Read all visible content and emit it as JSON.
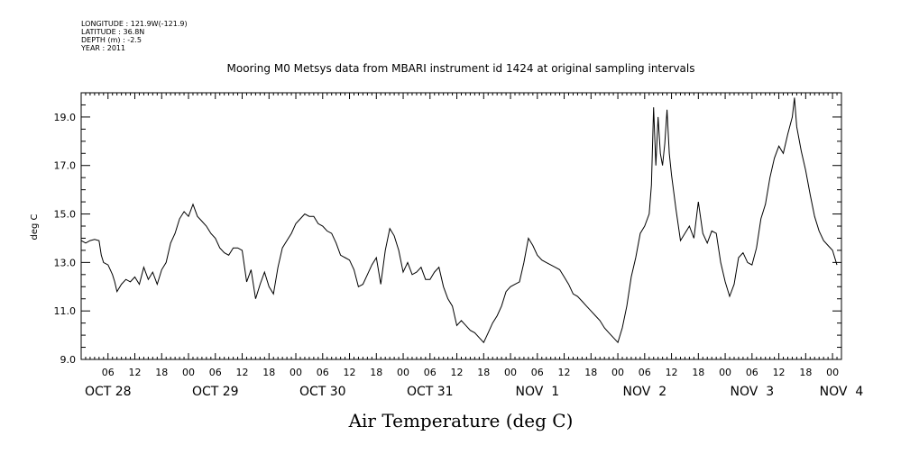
{
  "meta": {
    "longitude": "LONGITUDE : 121.9W(-121.9)",
    "latitude": "LATITUDE : 36.8N",
    "depth": "DEPTH (m) : -2.5",
    "year": "YEAR : 2011"
  },
  "chart_data": {
    "type": "line",
    "title": "Mooring M0 Metsys data from MBARI instrument id 1424 at original sampling intervals",
    "xlabel": "Air Temperature (deg C)",
    "ylabel": "deg C",
    "ylim": [
      9.0,
      20.0
    ],
    "xlim": [
      0,
      170
    ],
    "x_unit": "hours since OCT 28 00:00 (2011)",
    "y_ticks": [
      "9.0",
      "11.0",
      "13.0",
      "15.0",
      "17.0",
      "19.0"
    ],
    "hour_tick_labels": [
      {
        "t": 6,
        "label": "06"
      },
      {
        "t": 12,
        "label": "12"
      },
      {
        "t": 18,
        "label": "18"
      },
      {
        "t": 24,
        "label": "00"
      },
      {
        "t": 30,
        "label": "06"
      },
      {
        "t": 36,
        "label": "12"
      },
      {
        "t": 42,
        "label": "18"
      },
      {
        "t": 48,
        "label": "00"
      },
      {
        "t": 54,
        "label": "06"
      },
      {
        "t": 60,
        "label": "12"
      },
      {
        "t": 66,
        "label": "18"
      },
      {
        "t": 72,
        "label": "00"
      },
      {
        "t": 78,
        "label": "06"
      },
      {
        "t": 84,
        "label": "12"
      },
      {
        "t": 90,
        "label": "18"
      },
      {
        "t": 96,
        "label": "00"
      },
      {
        "t": 102,
        "label": "06"
      },
      {
        "t": 108,
        "label": "12"
      },
      {
        "t": 114,
        "label": "18"
      },
      {
        "t": 120,
        "label": "00"
      },
      {
        "t": 126,
        "label": "06"
      },
      {
        "t": 132,
        "label": "12"
      },
      {
        "t": 138,
        "label": "18"
      },
      {
        "t": 144,
        "label": "00"
      },
      {
        "t": 150,
        "label": "06"
      },
      {
        "t": 156,
        "label": "12"
      },
      {
        "t": 162,
        "label": "18"
      },
      {
        "t": 168,
        "label": "00"
      }
    ],
    "date_labels": [
      {
        "t": 6,
        "label": "OCT 28"
      },
      {
        "t": 30,
        "label": "OCT 29"
      },
      {
        "t": 54,
        "label": "OCT 30"
      },
      {
        "t": 78,
        "label": "OCT 31"
      },
      {
        "t": 102,
        "label": "NOV  1"
      },
      {
        "t": 126,
        "label": "NOV  2"
      },
      {
        "t": 150,
        "label": "NOV  3"
      },
      {
        "t": 170,
        "label": "NOV  4"
      }
    ],
    "series": [
      {
        "color": "#000000",
        "points": [
          [
            0,
            13.9
          ],
          [
            1,
            13.8
          ],
          [
            2,
            13.9
          ],
          [
            3,
            13.95
          ],
          [
            4,
            13.9
          ],
          [
            4.5,
            13.3
          ],
          [
            5,
            13.0
          ],
          [
            6,
            12.9
          ],
          [
            7,
            12.5
          ],
          [
            7.5,
            12.2
          ],
          [
            8,
            11.8
          ],
          [
            9,
            12.1
          ],
          [
            10,
            12.3
          ],
          [
            11,
            12.2
          ],
          [
            12,
            12.4
          ],
          [
            13,
            12.1
          ],
          [
            14,
            12.8
          ],
          [
            15,
            12.3
          ],
          [
            16,
            12.6
          ],
          [
            17,
            12.1
          ],
          [
            18,
            12.7
          ],
          [
            19,
            13.0
          ],
          [
            20,
            13.8
          ],
          [
            21,
            14.2
          ],
          [
            22,
            14.8
          ],
          [
            23,
            15.1
          ],
          [
            24,
            14.9
          ],
          [
            25,
            15.4
          ],
          [
            26,
            14.9
          ],
          [
            27,
            14.7
          ],
          [
            28,
            14.5
          ],
          [
            29,
            14.2
          ],
          [
            30,
            14.0
          ],
          [
            31,
            13.6
          ],
          [
            32,
            13.4
          ],
          [
            33,
            13.3
          ],
          [
            34,
            13.6
          ],
          [
            35,
            13.6
          ],
          [
            36,
            13.5
          ],
          [
            37,
            12.2
          ],
          [
            38,
            12.7
          ],
          [
            39,
            11.5
          ],
          [
            40,
            12.1
          ],
          [
            41,
            12.6
          ],
          [
            42,
            12.0
          ],
          [
            43,
            11.7
          ],
          [
            44,
            12.8
          ],
          [
            45,
            13.6
          ],
          [
            46,
            13.9
          ],
          [
            47,
            14.2
          ],
          [
            48,
            14.6
          ],
          [
            49,
            14.8
          ],
          [
            50,
            15.0
          ],
          [
            51,
            14.9
          ],
          [
            52,
            14.9
          ],
          [
            53,
            14.6
          ],
          [
            54,
            14.5
          ],
          [
            55,
            14.3
          ],
          [
            56,
            14.2
          ],
          [
            57,
            13.8
          ],
          [
            58,
            13.3
          ],
          [
            59,
            13.2
          ],
          [
            60,
            13.1
          ],
          [
            61,
            12.7
          ],
          [
            62,
            12.0
          ],
          [
            63,
            12.1
          ],
          [
            64,
            12.5
          ],
          [
            65,
            12.9
          ],
          [
            66,
            13.2
          ],
          [
            67,
            12.1
          ],
          [
            68,
            13.5
          ],
          [
            69,
            14.4
          ],
          [
            70,
            14.1
          ],
          [
            71,
            13.5
          ],
          [
            72,
            12.6
          ],
          [
            73,
            13.0
          ],
          [
            74,
            12.5
          ],
          [
            75,
            12.6
          ],
          [
            76,
            12.8
          ],
          [
            77,
            12.3
          ],
          [
            78,
            12.3
          ],
          [
            79,
            12.6
          ],
          [
            80,
            12.8
          ],
          [
            81,
            12.0
          ],
          [
            82,
            11.5
          ],
          [
            83,
            11.2
          ],
          [
            84,
            10.4
          ],
          [
            85,
            10.6
          ],
          [
            86,
            10.4
          ],
          [
            87,
            10.2
          ],
          [
            88,
            10.1
          ],
          [
            89,
            9.9
          ],
          [
            90,
            9.7
          ],
          [
            91,
            10.1
          ],
          [
            92,
            10.5
          ],
          [
            93,
            10.8
          ],
          [
            94,
            11.2
          ],
          [
            95,
            11.8
          ],
          [
            96,
            12.0
          ],
          [
            97,
            12.1
          ],
          [
            98,
            12.2
          ],
          [
            99,
            13.0
          ],
          [
            100,
            14.0
          ],
          [
            101,
            13.7
          ],
          [
            102,
            13.3
          ],
          [
            103,
            13.1
          ],
          [
            104,
            13.0
          ],
          [
            105,
            12.9
          ],
          [
            106,
            12.8
          ],
          [
            107,
            12.7
          ],
          [
            108,
            12.4
          ],
          [
            109,
            12.1
          ],
          [
            110,
            11.7
          ],
          [
            111,
            11.6
          ],
          [
            112,
            11.4
          ],
          [
            113,
            11.2
          ],
          [
            114,
            11.0
          ],
          [
            115,
            10.8
          ],
          [
            116,
            10.6
          ],
          [
            117,
            10.3
          ],
          [
            118,
            10.1
          ],
          [
            119,
            9.9
          ],
          [
            120,
            9.7
          ],
          [
            121,
            10.3
          ],
          [
            122,
            11.2
          ],
          [
            123,
            12.4
          ],
          [
            124,
            13.2
          ],
          [
            125,
            14.2
          ],
          [
            126,
            14.5
          ],
          [
            127,
            15.0
          ],
          [
            127.5,
            16.2
          ],
          [
            128,
            19.4
          ],
          [
            128.5,
            17.0
          ],
          [
            129,
            19.0
          ],
          [
            129.5,
            17.5
          ],
          [
            130,
            17.0
          ],
          [
            130.5,
            17.9
          ],
          [
            131,
            19.3
          ],
          [
            131.5,
            17.5
          ],
          [
            132,
            16.6
          ],
          [
            133,
            15.2
          ],
          [
            134,
            13.9
          ],
          [
            135,
            14.2
          ],
          [
            136,
            14.5
          ],
          [
            137,
            14.0
          ],
          [
            138,
            15.5
          ],
          [
            139,
            14.2
          ],
          [
            140,
            13.8
          ],
          [
            141,
            14.3
          ],
          [
            142,
            14.2
          ],
          [
            143,
            13.0
          ],
          [
            144,
            12.2
          ],
          [
            145,
            11.6
          ],
          [
            146,
            12.1
          ],
          [
            147,
            13.2
          ],
          [
            148,
            13.4
          ],
          [
            149,
            13.0
          ],
          [
            150,
            12.9
          ],
          [
            151,
            13.6
          ],
          [
            152,
            14.8
          ],
          [
            153,
            15.4
          ],
          [
            154,
            16.5
          ],
          [
            155,
            17.3
          ],
          [
            156,
            17.8
          ],
          [
            157,
            17.5
          ],
          [
            158,
            18.3
          ],
          [
            159,
            19.0
          ],
          [
            159.5,
            19.8
          ],
          [
            160,
            18.6
          ],
          [
            161,
            17.6
          ],
          [
            162,
            16.8
          ],
          [
            163,
            15.8
          ],
          [
            164,
            14.9
          ],
          [
            165,
            14.3
          ],
          [
            166,
            13.9
          ],
          [
            167,
            13.7
          ],
          [
            168,
            13.5
          ],
          [
            169,
            12.9
          ]
        ]
      }
    ]
  }
}
